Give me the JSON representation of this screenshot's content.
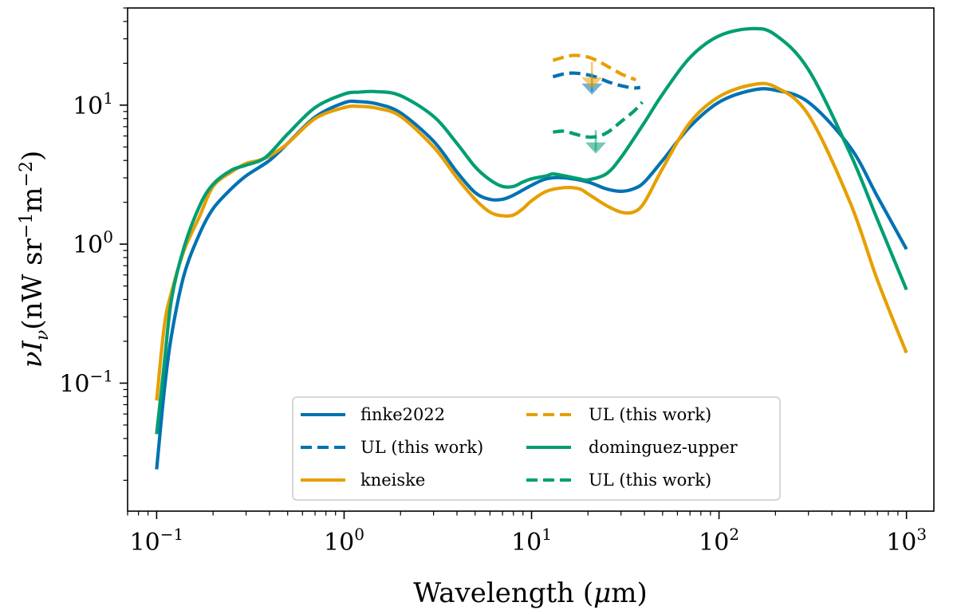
{
  "chart_data": {
    "type": "line",
    "title": "",
    "xlabel": "Wavelength (μm)",
    "xlabel_parts": {
      "text": "Wavelength (",
      "mu": "μ",
      "unit": "m)"
    },
    "ylabel": "νIν(nW sr⁻¹m⁻²)",
    "ylabel_parts": {
      "nu": "ν",
      "I": "I",
      "sub": "ν",
      "open": "(nW sr",
      "e1": "−1",
      "m": "m",
      "e2": "−2",
      "close": ")"
    },
    "xscale": "log",
    "yscale": "log",
    "xlim": [
      0.07,
      1400
    ],
    "ylim": [
      0.012,
      50
    ],
    "x_ticks": [
      {
        "value": 0.1,
        "base": "10",
        "exp": "−1"
      },
      {
        "value": 1,
        "base": "10",
        "exp": "0"
      },
      {
        "value": 10,
        "base": "10",
        "exp": "1"
      },
      {
        "value": 100,
        "base": "10",
        "exp": "2"
      },
      {
        "value": 1000,
        "base": "10",
        "exp": "3"
      }
    ],
    "y_ticks": [
      {
        "value": 0.1,
        "base": "10",
        "exp": "−1"
      },
      {
        "value": 1,
        "base": "10",
        "exp": "0"
      },
      {
        "value": 10,
        "base": "10",
        "exp": "1"
      }
    ],
    "legend": {
      "placement": "lower-center",
      "columns": 2
    },
    "series": [
      {
        "name": "finke2022",
        "color": "#0072b2",
        "style": "solid",
        "x": [
          0.1,
          0.11,
          0.12,
          0.14,
          0.17,
          0.2,
          0.25,
          0.3,
          0.4,
          0.5,
          0.7,
          1.0,
          1.2,
          1.5,
          2.0,
          3.0,
          4.0,
          5.0,
          6.0,
          7.0,
          8.0,
          10,
          12,
          15,
          20,
          25,
          30,
          35,
          40,
          50,
          70,
          100,
          150,
          200,
          300,
          500,
          700,
          1000
        ],
        "y": [
          0.024,
          0.09,
          0.22,
          0.6,
          1.2,
          1.8,
          2.5,
          3.1,
          4.0,
          5.3,
          8.2,
          10.4,
          10.6,
          10.2,
          8.8,
          5.5,
          3.3,
          2.35,
          2.1,
          2.1,
          2.25,
          2.65,
          2.95,
          3.0,
          2.8,
          2.5,
          2.4,
          2.5,
          2.8,
          4.0,
          7.0,
          10.5,
          12.8,
          12.8,
          10.5,
          5.0,
          2.2,
          0.92
        ]
      },
      {
        "name": "UL (this work)",
        "color": "#0072b2",
        "style": "dashed",
        "x": [
          13,
          15,
          17,
          20,
          23,
          26,
          30,
          35,
          38
        ],
        "y": [
          16.0,
          16.8,
          17.0,
          16.5,
          15.6,
          14.6,
          13.8,
          13.3,
          13.4
        ]
      },
      {
        "name": "kneiske",
        "color": "#e69f00",
        "style": "solid",
        "x": [
          0.1,
          0.11,
          0.12,
          0.14,
          0.17,
          0.2,
          0.25,
          0.3,
          0.35,
          0.4,
          0.5,
          0.7,
          1.0,
          1.2,
          1.5,
          2.0,
          3.0,
          4.0,
          5.0,
          6.0,
          7.0,
          8.0,
          9.0,
          10,
          12,
          15,
          18,
          20,
          25,
          30,
          35,
          40,
          50,
          70,
          100,
          150,
          200,
          300,
          500,
          700,
          1000
        ],
        "y": [
          0.075,
          0.26,
          0.45,
          0.9,
          1.6,
          2.6,
          3.3,
          3.8,
          4.0,
          4.3,
          5.3,
          8.0,
          9.6,
          9.8,
          9.5,
          8.3,
          5.0,
          3.0,
          2.1,
          1.7,
          1.6,
          1.62,
          1.8,
          2.05,
          2.4,
          2.55,
          2.5,
          2.3,
          1.9,
          1.7,
          1.7,
          2.0,
          3.5,
          7.5,
          11.5,
          14.0,
          13.5,
          8.5,
          2.0,
          0.55,
          0.165
        ]
      },
      {
        "name": "UL (this work)",
        "color": "#e69f00",
        "style": "dashed",
        "x": [
          13,
          15,
          17,
          20,
          23,
          26,
          30,
          33,
          36
        ],
        "y": [
          21.0,
          22.2,
          22.8,
          22.2,
          20.5,
          18.7,
          16.8,
          15.9,
          15.2
        ]
      },
      {
        "name": "dominguez-upper",
        "color": "#009e73",
        "style": "solid",
        "x": [
          0.1,
          0.11,
          0.12,
          0.14,
          0.17,
          0.2,
          0.25,
          0.3,
          0.38,
          0.5,
          0.7,
          1.0,
          1.2,
          1.5,
          2.0,
          3.0,
          4.0,
          5.0,
          6.0,
          7.0,
          8.0,
          9.0,
          10,
          12,
          13,
          15,
          18,
          20,
          25,
          30,
          40,
          50,
          70,
          100,
          150,
          200,
          300,
          500,
          700,
          1000
        ],
        "y": [
          0.043,
          0.14,
          0.4,
          0.95,
          1.9,
          2.7,
          3.4,
          3.7,
          4.2,
          6.2,
          9.6,
          12.0,
          12.4,
          12.5,
          11.7,
          8.3,
          5.3,
          3.6,
          2.9,
          2.6,
          2.6,
          2.8,
          2.95,
          3.1,
          3.2,
          3.1,
          2.95,
          2.9,
          3.2,
          4.2,
          7.5,
          12.0,
          22.0,
          31.5,
          35.5,
          32.0,
          18.0,
          4.5,
          1.5,
          0.47
        ]
      },
      {
        "name": "UL (this work)",
        "color": "#009e73",
        "style": "dashed",
        "x": [
          13,
          15,
          17,
          20,
          23,
          26,
          30,
          35,
          39
        ],
        "y": [
          6.4,
          6.5,
          6.2,
          5.9,
          6.0,
          6.5,
          7.6,
          9.0,
          10.5
        ]
      }
    ],
    "upper_limit_arrows": [
      {
        "x": 21,
        "y_from": 17.0,
        "y_to": 12.2,
        "color": "#0072b2"
      },
      {
        "x": 21,
        "y_from": 20.5,
        "y_to": 13.5,
        "color": "#e69f00"
      },
      {
        "x": 22,
        "y_from": 6.6,
        "y_to": 4.6,
        "color": "#009e73"
      }
    ]
  }
}
